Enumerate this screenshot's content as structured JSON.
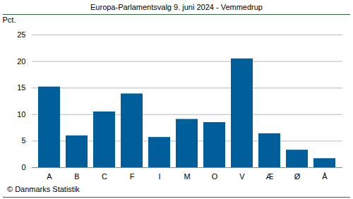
{
  "chart_data": {
    "type": "bar",
    "title": "Europa-Parlamentsvalg 9. juni 2024 - Vemmedrup",
    "y_label": "Pct.",
    "caption": "© Danmarks Statistik",
    "categories": [
      "A",
      "B",
      "C",
      "F",
      "I",
      "M",
      "O",
      "V",
      "Æ",
      "Ø",
      "Å"
    ],
    "values": [
      15.2,
      6.0,
      10.5,
      13.9,
      5.7,
      9.1,
      8.5,
      20.5,
      6.4,
      3.3,
      1.7
    ],
    "color": "#005f9a",
    "ylim": [
      0,
      25
    ],
    "yticks": [
      0,
      5,
      10,
      15,
      20,
      25
    ],
    "grid": true
  }
}
